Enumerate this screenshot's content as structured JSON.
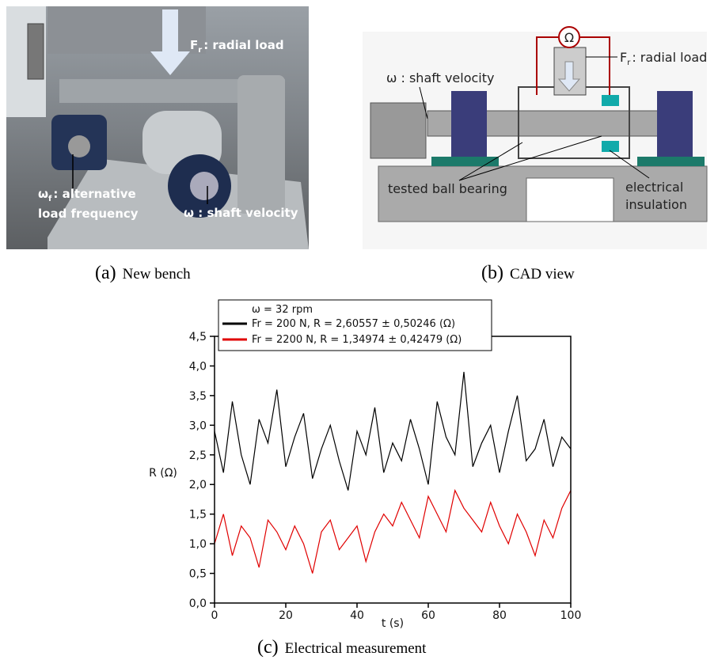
{
  "figure": {
    "panel_a": {
      "label": "(a)",
      "caption": "New bench",
      "annotations": [
        {
          "main": "F",
          "sub": "r",
          "text": ": radial load"
        },
        {
          "main": "ω",
          "sub": "f",
          "text": ": alternative"
        },
        {
          "text": "load frequency"
        },
        {
          "text": "ω : shaft velocity"
        }
      ]
    },
    "panel_b": {
      "label": "(b)",
      "caption": "CAD view",
      "annotations": [
        {
          "text": "Ω"
        },
        {
          "main": "F",
          "sub": "r",
          "text": ": radial load"
        },
        {
          "text": "ω : shaft velocity"
        },
        {
          "text": "tested ball bearing"
        },
        {
          "text": "electrical"
        },
        {
          "text": "insulation"
        }
      ]
    },
    "panel_c": {
      "label": "(c)",
      "caption": "Electrical measurement"
    }
  },
  "chart_data": {
    "type": "line",
    "xlabel": "t (s)",
    "ylabel": "R (Ω)",
    "legend_title": "ω = 32 rpm",
    "x": [
      0,
      2.5,
      5,
      7.5,
      10,
      12.5,
      15,
      17.5,
      20,
      22.5,
      25,
      27.5,
      30,
      32.5,
      35,
      37.5,
      40,
      42.5,
      45,
      47.5,
      50,
      52.5,
      55,
      57.5,
      60,
      62.5,
      65,
      67.5,
      70,
      72.5,
      75,
      77.5,
      80,
      82.5,
      85,
      87.5,
      90,
      92.5,
      95,
      97.5,
      100
    ],
    "series": [
      {
        "name": "Fr = 200 N, R = 2,60557 ± 0,50246 (Ω)",
        "color": "#000000",
        "values": [
          2.9,
          2.2,
          3.4,
          2.5,
          2.0,
          3.1,
          2.7,
          3.6,
          2.3,
          2.8,
          3.2,
          2.1,
          2.6,
          3.0,
          2.4,
          1.9,
          2.9,
          2.5,
          3.3,
          2.2,
          2.7,
          2.4,
          3.1,
          2.6,
          2.0,
          3.4,
          2.8,
          2.5,
          3.9,
          2.3,
          2.7,
          3.0,
          2.2,
          2.9,
          3.5,
          2.4,
          2.6,
          3.1,
          2.3,
          2.8,
          2.6
        ]
      },
      {
        "name": "Fr = 2200 N, R = 1,34974 ± 0,42479 (Ω)",
        "color": "#e00000",
        "values": [
          1.0,
          1.5,
          0.8,
          1.3,
          1.1,
          0.6,
          1.4,
          1.2,
          0.9,
          1.3,
          1.0,
          0.5,
          1.2,
          1.4,
          0.9,
          1.1,
          1.3,
          0.7,
          1.2,
          1.5,
          1.3,
          1.7,
          1.4,
          1.1,
          1.8,
          1.5,
          1.2,
          1.9,
          1.6,
          1.4,
          1.2,
          1.7,
          1.3,
          1.0,
          1.5,
          1.2,
          0.8,
          1.4,
          1.1,
          1.6,
          1.9
        ]
      }
    ],
    "xlim": [
      0,
      100
    ],
    "ylim": [
      0,
      4.5
    ],
    "xticks": [
      0,
      20,
      40,
      60,
      80,
      100
    ],
    "yticks": [
      {
        "value": 0,
        "label": "0,0"
      },
      {
        "value": 0.5,
        "label": "0,5"
      },
      {
        "value": 1,
        "label": "1,0"
      },
      {
        "value": 1.5,
        "label": "1,5"
      },
      {
        "value": 2,
        "label": "2,0"
      },
      {
        "value": 2.5,
        "label": "2,5"
      },
      {
        "value": 3,
        "label": "3,0"
      },
      {
        "value": 3.5,
        "label": "3,5"
      },
      {
        "value": 4,
        "label": "4,0"
      },
      {
        "value": 4.5,
        "label": "4,5"
      }
    ]
  }
}
